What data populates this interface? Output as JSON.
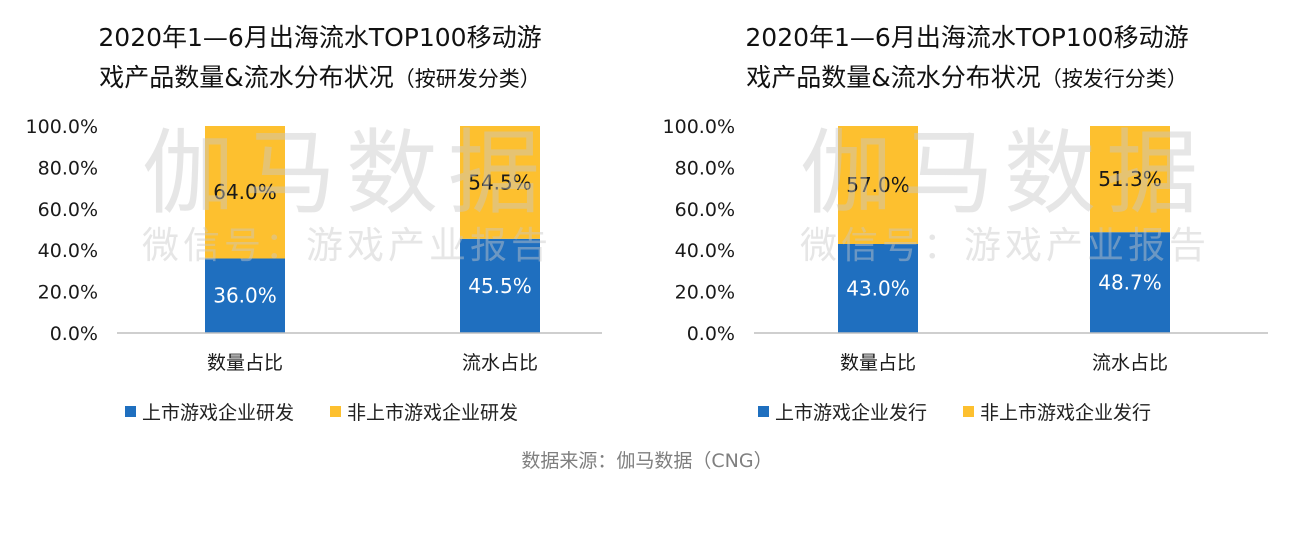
{
  "colors": {
    "listed": "#1f6fbf",
    "unlisted": "#fdc02f",
    "axis": "#bfbfbf",
    "source": "#7f7f7f"
  },
  "watermark": {
    "big": "伽马数据",
    "small": "微信号：游戏产业报告"
  },
  "source": "数据来源：伽马数据（CNG）",
  "charts": {
    "left": {
      "title_line1": "2020年1—6月出海流水TOP100移动游",
      "title_line2": "戏产品数量&流水分布状况",
      "title_paren": "（按研发分类）",
      "legend": [
        "上市游戏企业研发",
        "非上市游戏企业研发"
      ]
    },
    "right": {
      "title_line1": "2020年1—6月出海流水TOP100移动游",
      "title_line2": "戏产品数量&流水分布状况",
      "title_paren": "（按发行分类）",
      "legend": [
        "上市游戏企业发行",
        "非上市游戏企业发行"
      ]
    }
  },
  "chart_data": [
    {
      "type": "bar",
      "stacked": true,
      "categories": [
        "数量占比",
        "流水占比"
      ],
      "series": [
        {
          "name": "上市游戏企业研发",
          "values": [
            36.0,
            45.5
          ],
          "labels": [
            "36.0%",
            "45.5%"
          ]
        },
        {
          "name": "非上市游戏企业研发",
          "values": [
            64.0,
            54.5
          ],
          "labels": [
            "64.0%",
            "54.5%"
          ]
        }
      ],
      "ylim": [
        0,
        100
      ],
      "yticks": [
        "0.0%",
        "20.0%",
        "40.0%",
        "60.0%",
        "80.0%",
        "100.0%"
      ],
      "legend_position": "bottom"
    },
    {
      "type": "bar",
      "stacked": true,
      "categories": [
        "数量占比",
        "流水占比"
      ],
      "series": [
        {
          "name": "上市游戏企业发行",
          "values": [
            43.0,
            48.7
          ],
          "labels": [
            "43.0%",
            "48.7%"
          ]
        },
        {
          "name": "非上市游戏企业发行",
          "values": [
            57.0,
            51.3
          ],
          "labels": [
            "57.0%",
            "51.3%"
          ]
        }
      ],
      "ylim": [
        0,
        100
      ],
      "yticks": [
        "0.0%",
        "20.0%",
        "40.0%",
        "60.0%",
        "80.0%",
        "100.0%"
      ],
      "legend_position": "bottom"
    }
  ]
}
